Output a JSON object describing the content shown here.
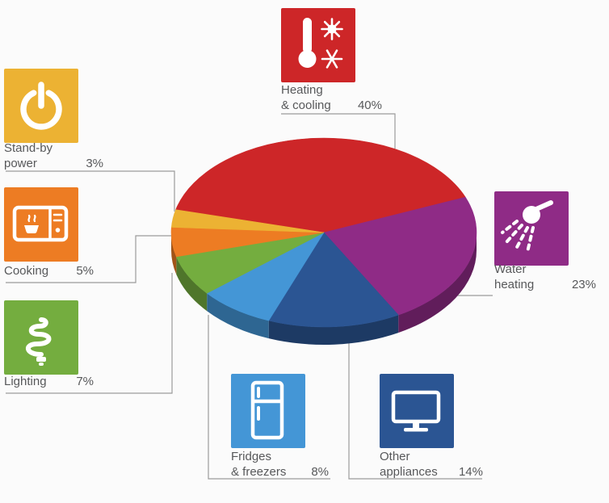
{
  "figure": {
    "name": "Household energy use by category",
    "background": "#fbfbfb",
    "label_color": "#57585a",
    "leader_line_color": "#9b9b9b",
    "icon_glyph_color": "#ffffff"
  },
  "chart_data": {
    "type": "pie",
    "style": "3d-ellipse",
    "unit": "%",
    "start_angle_deg": 166,
    "direction": "clockwise",
    "total": 100,
    "slices": [
      {
        "id": "heating-cooling",
        "label": "Heating & cooling",
        "lines": [
          "Heating",
          "& cooling"
        ],
        "pct_label": "40%",
        "value": 40,
        "color": "#cd2628",
        "icon": "thermometer-sun-snowflake-icon"
      },
      {
        "id": "water-heating",
        "label": "Water heating",
        "lines": [
          "Water",
          "heating"
        ],
        "pct_label": "23%",
        "value": 23,
        "color": "#8f2b86",
        "icon": "shower-icon"
      },
      {
        "id": "other-appliances",
        "label": "Other appliances",
        "lines": [
          "Other",
          "appliances"
        ],
        "pct_label": "14%",
        "value": 14,
        "color": "#2b5593",
        "icon": "monitor-icon"
      },
      {
        "id": "fridges-freezers",
        "label": "Fridges & freezers",
        "lines": [
          "Fridges",
          "& freezers"
        ],
        "pct_label": "8%",
        "value": 8,
        "color": "#4496d6",
        "icon": "fridge-icon"
      },
      {
        "id": "lighting",
        "label": "Lighting",
        "lines": [
          "Lighting"
        ],
        "pct_label": "7%",
        "value": 7,
        "color": "#74ad3f",
        "icon": "cfl-bulb-icon"
      },
      {
        "id": "cooking",
        "label": "Cooking",
        "lines": [
          "Cooking"
        ],
        "pct_label": "5%",
        "value": 5,
        "color": "#ed7c23",
        "icon": "microwave-icon"
      },
      {
        "id": "standby-power",
        "label": "Stand-by power",
        "lines": [
          "Stand-by",
          "power"
        ],
        "pct_label": "3%",
        "value": 3,
        "color": "#ecb233",
        "icon": "power-icon"
      }
    ]
  }
}
